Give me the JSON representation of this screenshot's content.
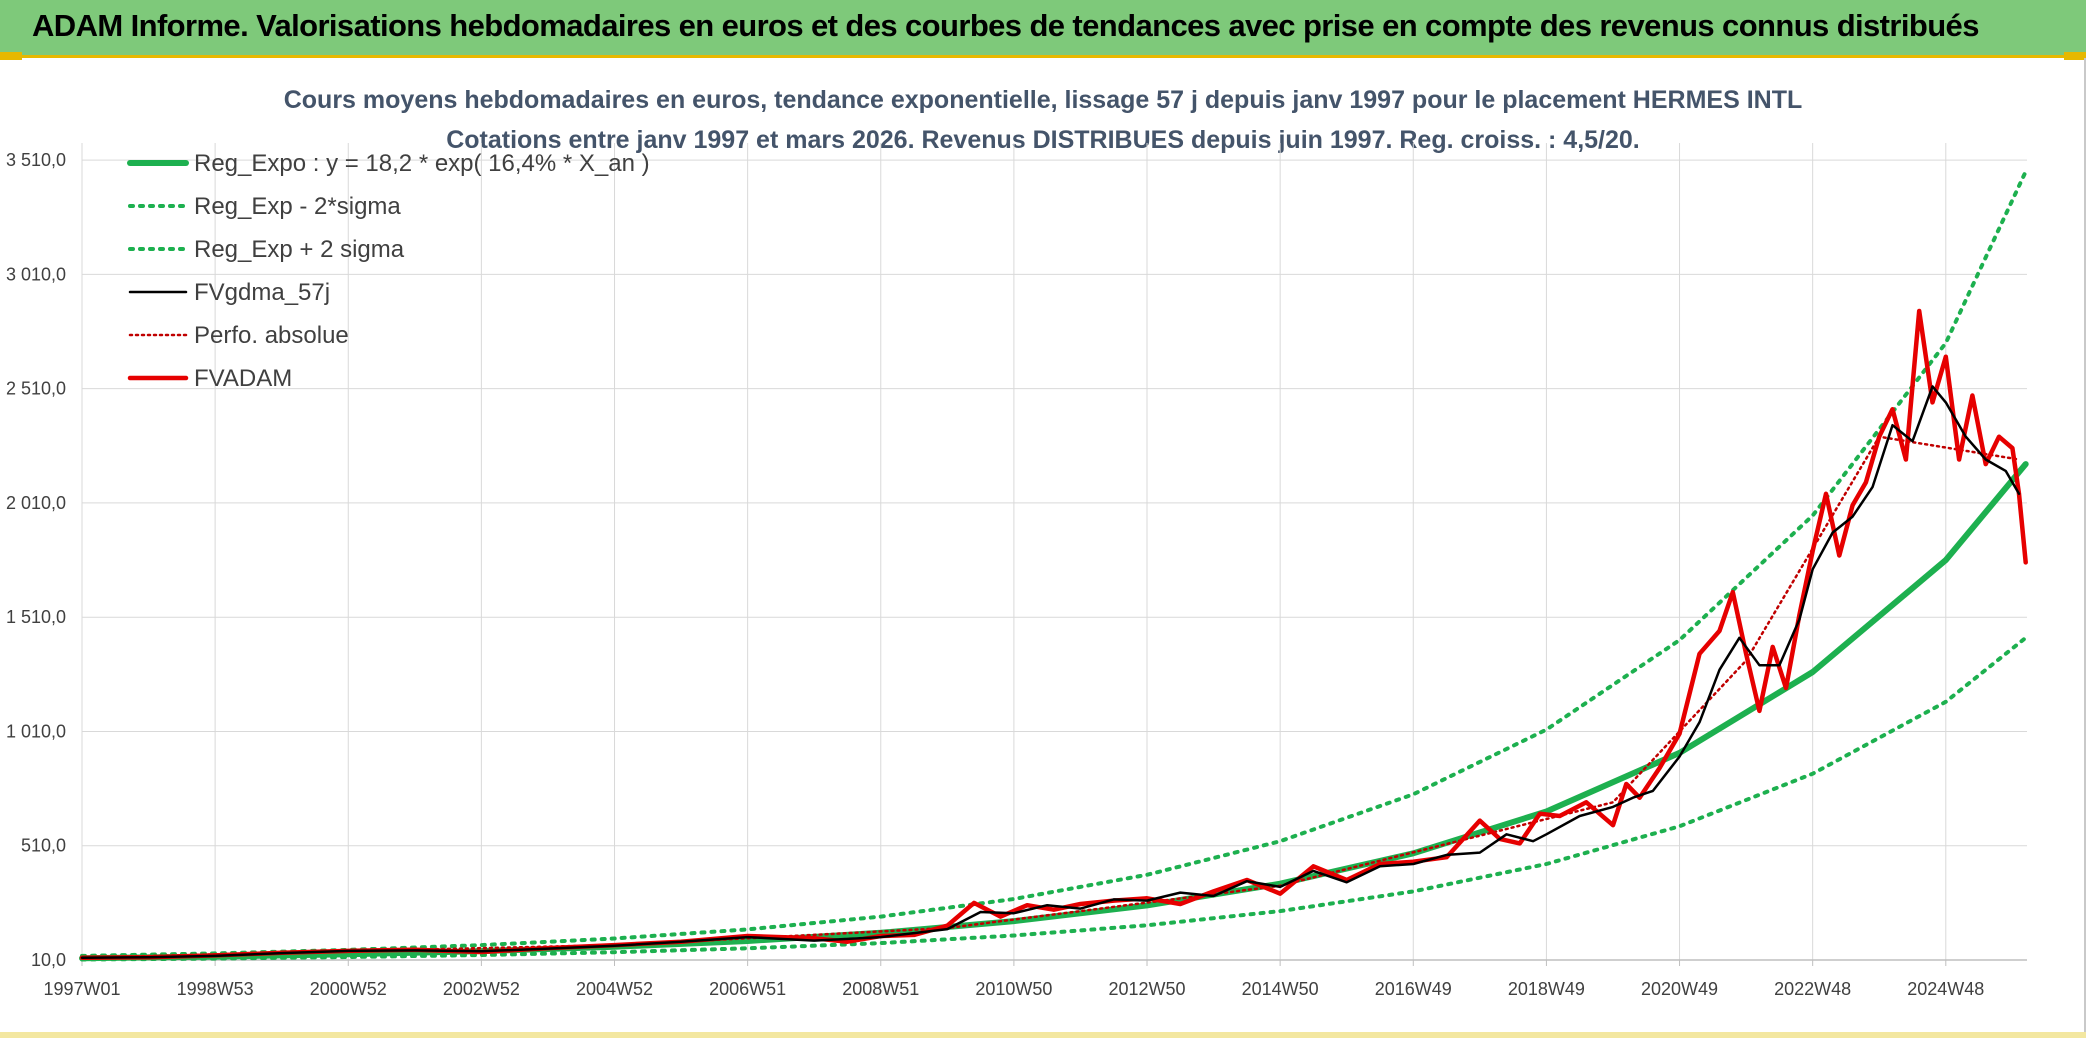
{
  "banner": {
    "title": "ADAM Informe. Valorisations hebdomadaires en euros et des courbes de tendances avec prise en compte des revenus connus distribués"
  },
  "colors": {
    "banner_bg": "#7ec97a",
    "regression": "#1db04f",
    "smoothed": "#000000",
    "price": "#e60000",
    "grid": "#d9d9d9"
  },
  "chart_data": {
    "type": "line",
    "title": "Cours moyens hebdomadaires en euros, tendance exponentielle, lissage 57 j depuis janv 1997 pour le placement HERMES INTL",
    "subtitle": "Cotations entre janv 1997 et mars 2026. Revenus DISTRIBUES depuis juin 1997. Reg. croiss. : 4,5/20.",
    "xlabel": "",
    "ylabel": "",
    "x_range": [
      1997.0,
      2026.22
    ],
    "ylim": [
      10,
      3760
    ],
    "y_ticks": [
      10,
      510,
      1010,
      1510,
      2010,
      2510,
      3010,
      3510
    ],
    "y_tick_labels": [
      "10,0",
      "510,0",
      "1 010,0",
      "1 510,0",
      "2 010,0",
      "2 510,0",
      "3 010,0",
      "3 510,0"
    ],
    "x_ticks": [
      1997.0,
      1999.0,
      2001.0,
      2003.0,
      2005.0,
      2007.0,
      2009.0,
      2011.0,
      2013.0,
      2015.0,
      2017.0,
      2019.0,
      2021.0,
      2023.0,
      2025.0
    ],
    "x_tick_labels": [
      "1997W01",
      "1998W53",
      "2000W52",
      "2002W52",
      "2004W52",
      "2006W51",
      "2008W51",
      "2010W50",
      "2012W50",
      "2014W50",
      "2016W49",
      "2018W49",
      "2020W49",
      "2022W48",
      "2024W48"
    ],
    "grid": true,
    "legend_position": "top-left",
    "series": [
      {
        "name": "Reg_Expo : y = 18,2 * exp( 16,4% *  X_an )",
        "style": "solid-thick",
        "color": "#1db04f",
        "x": [
          1997,
          1999,
          2001,
          2003,
          2005,
          2007,
          2009,
          2011,
          2013,
          2015,
          2017,
          2019,
          2021,
          2023,
          2025,
          2026.2
        ],
        "values": [
          18,
          25,
          35,
          49,
          68,
          93,
          129,
          180,
          249,
          344,
          477,
          660,
          916,
          1270,
          1760,
          2180
        ]
      },
      {
        "name": "Reg_Exp - 2*sigma",
        "style": "dotted",
        "color": "#1db04f",
        "x": [
          1997,
          1999,
          2001,
          2003,
          2005,
          2007,
          2009,
          2011,
          2013,
          2015,
          2017,
          2019,
          2021,
          2023,
          2025,
          2026.2
        ],
        "values": [
          12,
          16,
          23,
          32,
          44,
          61,
          84,
          117,
          162,
          224,
          310,
          430,
          595,
          825,
          1140,
          1420
        ]
      },
      {
        "name": "Reg_Exp + 2 sigma",
        "style": "dotted",
        "color": "#1db04f",
        "x": [
          1997,
          1999,
          2001,
          2003,
          2005,
          2007,
          2009,
          2011,
          2013,
          2015,
          2017,
          2019,
          2021,
          2023,
          2025,
          2026.2
        ],
        "values": [
          28,
          39,
          54,
          75,
          104,
          144,
          200,
          277,
          383,
          530,
          735,
          1018,
          1410,
          1955,
          2710,
          3460
        ]
      },
      {
        "name": "FVgdma_57j",
        "style": "solid",
        "color": "#000000",
        "x": [
          1997.0,
          1998.0,
          1999.0,
          2000.0,
          2001.0,
          2002.0,
          2003.0,
          2004.0,
          2005.0,
          2006.0,
          2007.0,
          2008.0,
          2009.0,
          2010.0,
          2010.5,
          2011.0,
          2011.5,
          2012.0,
          2012.5,
          2013.0,
          2013.5,
          2014.0,
          2014.5,
          2015.0,
          2015.5,
          2016.0,
          2016.5,
          2017.0,
          2017.5,
          2018.0,
          2018.4,
          2018.8,
          2019.0,
          2019.5,
          2020.0,
          2020.3,
          2020.6,
          2021.0,
          2021.3,
          2021.6,
          2021.9,
          2022.2,
          2022.5,
          2022.8,
          2023.0,
          2023.3,
          2023.6,
          2023.9,
          2024.2,
          2024.5,
          2024.8,
          2025.0,
          2025.3,
          2025.6,
          2025.9,
          2026.1
        ],
        "values": [
          20,
          22,
          28,
          40,
          50,
          52,
          48,
          60,
          72,
          90,
          110,
          95,
          110,
          145,
          220,
          215,
          250,
          235,
          275,
          270,
          305,
          290,
          355,
          330,
          400,
          350,
          420,
          430,
          470,
          480,
          560,
          530,
          560,
          640,
          680,
          720,
          750,
          900,
          1050,
          1280,
          1420,
          1300,
          1300,
          1500,
          1720,
          1880,
          1950,
          2080,
          2350,
          2280,
          2520,
          2450,
          2300,
          2200,
          2150,
          2050
        ]
      },
      {
        "name": "Perfo. absolue",
        "style": "dotted",
        "color": "#c00000",
        "x": [
          1997.0,
          2000.0,
          2005.0,
          2010.0,
          2015.0,
          2020.0,
          2022.0,
          2024.0,
          2026.1
        ],
        "values": [
          20,
          42,
          75,
          150,
          335,
          700,
          1320,
          2300,
          2200
        ]
      },
      {
        "name": "FVADAM",
        "style": "solid-thick",
        "color": "#e60000",
        "x": [
          1997.0,
          1998.0,
          1999.0,
          2000.0,
          2001.0,
          2002.0,
          2003.0,
          2004.0,
          2005.0,
          2006.0,
          2007.0,
          2008.0,
          2008.5,
          2009.0,
          2009.5,
          2010.0,
          2010.4,
          2010.8,
          2011.2,
          2011.6,
          2012.0,
          2012.5,
          2013.0,
          2013.5,
          2014.0,
          2014.5,
          2015.0,
          2015.5,
          2016.0,
          2016.5,
          2017.0,
          2017.5,
          2018.0,
          2018.3,
          2018.6,
          2018.9,
          2019.2,
          2019.6,
          2020.0,
          2020.2,
          2020.4,
          2020.7,
          2021.0,
          2021.3,
          2021.6,
          2021.8,
          2022.0,
          2022.2,
          2022.4,
          2022.6,
          2022.8,
          2023.0,
          2023.2,
          2023.4,
          2023.6,
          2023.8,
          2024.0,
          2024.2,
          2024.4,
          2024.6,
          2024.8,
          2025.0,
          2025.2,
          2025.4,
          2025.6,
          2025.8,
          2026.0,
          2026.1,
          2026.2
        ],
        "values": [
          20,
          22,
          30,
          42,
          50,
          55,
          45,
          62,
          75,
          90,
          115,
          105,
          90,
          115,
          120,
          160,
          260,
          200,
          250,
          230,
          255,
          270,
          280,
          255,
          310,
          360,
          300,
          420,
          360,
          430,
          440,
          460,
          620,
          540,
          520,
          650,
          640,
          700,
          600,
          780,
          720,
          850,
          1000,
          1350,
          1450,
          1620,
          1350,
          1100,
          1380,
          1200,
          1520,
          1800,
          2050,
          1780,
          2000,
          2100,
          2300,
          2420,
          2200,
          2850,
          2450,
          2650,
          2200,
          2480,
          2180,
          2300,
          2250,
          2050,
          1750
        ]
      }
    ]
  }
}
